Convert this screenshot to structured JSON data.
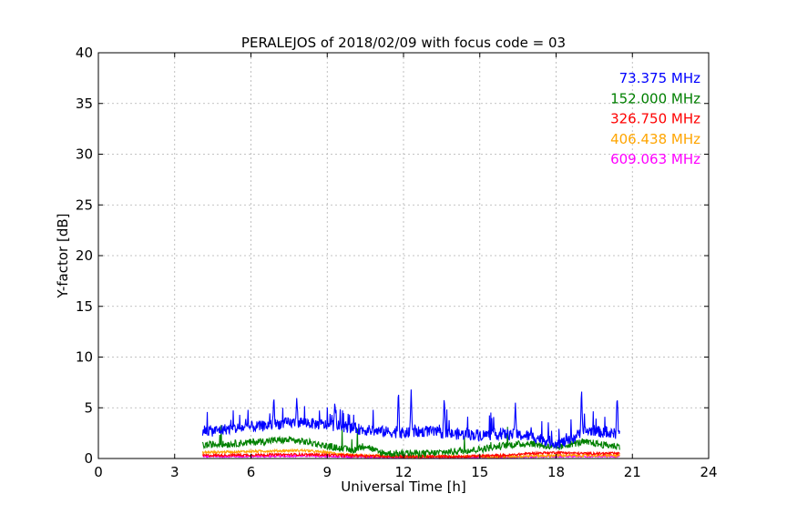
{
  "chart_data": {
    "type": "line",
    "title": "PERALEJOS of 2018/02/09 with focus code = 03",
    "xlabel": "Universal Time [h]",
    "ylabel": "Y-factor [dB]",
    "xlim": [
      0,
      24
    ],
    "ylim": [
      0,
      40
    ],
    "xticks": [
      0,
      3,
      6,
      9,
      12,
      15,
      18,
      21,
      24
    ],
    "yticks": [
      0,
      5,
      10,
      15,
      20,
      25,
      30,
      35,
      40
    ],
    "grid": true,
    "legend_position": "top-right",
    "series": [
      {
        "name": "73.375 MHz",
        "color": "#0000ff",
        "x": [
          4.1,
          4.5,
          5.0,
          5.5,
          6.0,
          6.5,
          7.0,
          7.5,
          8.0,
          8.5,
          9.0,
          9.5,
          10.0,
          10.5,
          11.0,
          11.5,
          12.0,
          12.5,
          13.0,
          13.5,
          14.0,
          14.5,
          15.0,
          15.5,
          16.0,
          16.5,
          17.0,
          17.5,
          18.0,
          18.5,
          19.0,
          19.5,
          20.0,
          20.5
        ],
        "y": [
          2.8,
          2.7,
          2.9,
          3.0,
          3.1,
          3.2,
          3.4,
          3.5,
          3.6,
          3.4,
          3.3,
          3.2,
          3.0,
          2.8,
          2.7,
          2.6,
          2.5,
          2.6,
          2.7,
          2.5,
          2.4,
          2.4,
          2.3,
          2.4,
          2.4,
          2.3,
          2.2,
          1.9,
          1.5,
          1.7,
          2.6,
          2.8,
          2.4,
          2.5
        ],
        "peaks": [
          [
            6.9,
            6.2
          ],
          [
            7.8,
            6.0
          ],
          [
            9.3,
            5.8
          ],
          [
            11.8,
            7.0
          ],
          [
            12.3,
            6.8
          ],
          [
            13.6,
            6.2
          ],
          [
            16.4,
            5.5
          ],
          [
            19.0,
            7.1
          ],
          [
            20.4,
            6.4
          ]
        ]
      },
      {
        "name": "152.000 MHz",
        "color": "#008000",
        "x": [
          4.1,
          4.5,
          5.0,
          5.5,
          6.0,
          6.5,
          7.0,
          7.5,
          8.0,
          8.5,
          9.0,
          9.5,
          10.0,
          10.5,
          11.0,
          11.5,
          12.0,
          12.5,
          13.0,
          13.5,
          14.0,
          14.5,
          15.0,
          15.5,
          16.0,
          16.5,
          17.0,
          17.5,
          18.0,
          18.5,
          19.0,
          19.5,
          20.0,
          20.5
        ],
        "y": [
          1.3,
          1.4,
          1.4,
          1.5,
          1.6,
          1.7,
          1.8,
          1.8,
          1.7,
          1.5,
          1.2,
          1.0,
          0.8,
          1.3,
          0.6,
          0.5,
          0.5,
          0.5,
          0.5,
          0.6,
          0.7,
          0.8,
          0.9,
          1.1,
          1.3,
          1.4,
          1.5,
          1.3,
          1.0,
          1.4,
          1.6,
          1.5,
          1.3,
          1.2
        ],
        "peaks": []
      },
      {
        "name": "326.750 MHz",
        "color": "#ff0000",
        "x": [
          4.1,
          6.0,
          8.0,
          10.0,
          12.0,
          14.0,
          16.0,
          17.0,
          18.0,
          19.0,
          20.0,
          20.5
        ],
        "y": [
          0.3,
          0.35,
          0.4,
          0.3,
          0.2,
          0.2,
          0.3,
          0.5,
          0.6,
          0.5,
          0.5,
          0.5
        ],
        "peaks": []
      },
      {
        "name": "406.438 MHz",
        "color": "#ffa500",
        "x": [
          4.1,
          6.0,
          8.0,
          9.0,
          10.0,
          12.0,
          14.0,
          16.0,
          18.0,
          20.0,
          20.5
        ],
        "y": [
          0.6,
          0.7,
          0.8,
          0.6,
          0.3,
          0.2,
          0.2,
          0.2,
          0.3,
          0.3,
          0.3
        ],
        "peaks": []
      },
      {
        "name": "609.063 MHz",
        "color": "#ff00ff",
        "x": [
          4.1,
          6.0,
          8.0,
          10.0,
          12.0,
          14.0,
          16.0,
          18.0,
          20.0,
          20.5
        ],
        "y": [
          0.2,
          0.2,
          0.25,
          0.15,
          0.1,
          0.1,
          0.1,
          0.2,
          0.2,
          0.2
        ],
        "peaks": []
      }
    ]
  }
}
